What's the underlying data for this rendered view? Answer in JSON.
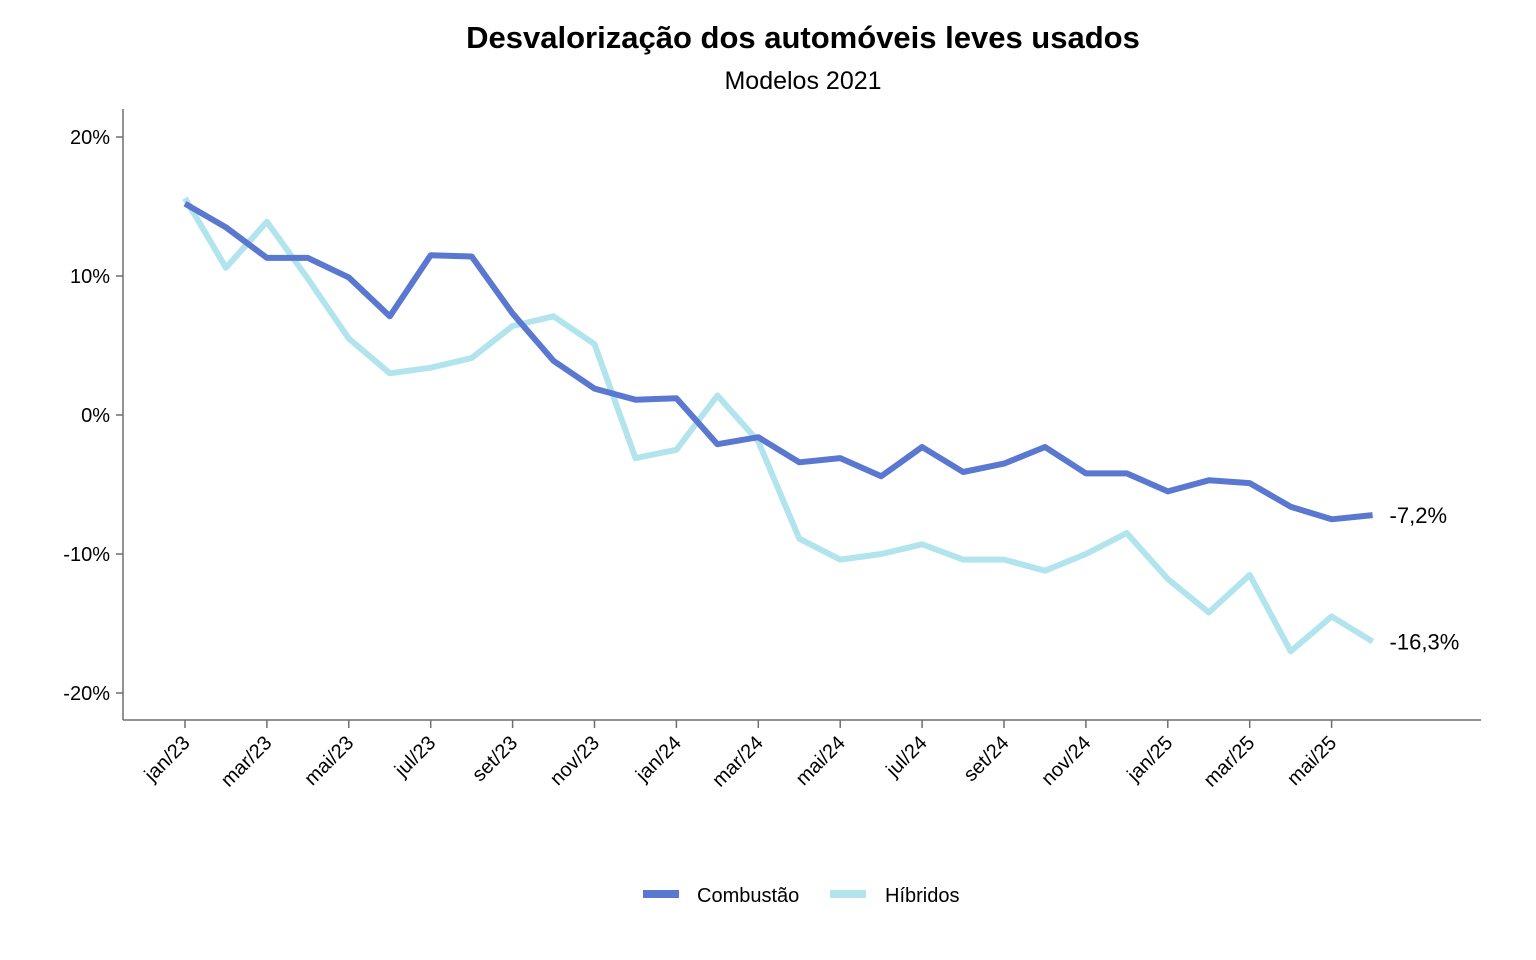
{
  "chart_data": {
    "type": "line",
    "title": "Desvalorização dos automóveis leves usados",
    "subtitle": "Modelos 2021",
    "xlabel": "",
    "ylabel": "",
    "ylim": [
      -22,
      22
    ],
    "y_ticks": [
      20,
      10,
      0,
      -10,
      -20
    ],
    "y_tick_labels": [
      "20%",
      "10%",
      "0%",
      "-10%",
      "-20%"
    ],
    "x": [
      "jan/23",
      "fev/23",
      "mar/23",
      "abr/23",
      "mai/23",
      "jun/23",
      "jul/23",
      "ago/23",
      "set/23",
      "out/23",
      "nov/23",
      "dez/23",
      "jan/24",
      "fev/24",
      "mar/24",
      "abr/24",
      "mai/24",
      "jun/24",
      "jul/24",
      "ago/24",
      "set/24",
      "out/24",
      "nov/24",
      "dez/24",
      "jan/25",
      "fev/25",
      "mar/25",
      "abr/25",
      "mai/25",
      "jun/25"
    ],
    "x_tick_labels": [
      "jan/23",
      "mar/23",
      "mai/23",
      "jul/23",
      "set/23",
      "nov/23",
      "jan/24",
      "mar/24",
      "mai/24",
      "jul/24",
      "set/24",
      "nov/24",
      "jan/25",
      "mar/25",
      "mai/25"
    ],
    "series": [
      {
        "name": "Combustão",
        "color": "#5b78d0",
        "values": [
          15.2,
          13.5,
          11.3,
          11.3,
          9.9,
          7.1,
          11.5,
          11.4,
          7.3,
          3.9,
          1.9,
          1.1,
          1.2,
          -2.1,
          -1.6,
          -3.4,
          -3.1,
          -4.4,
          -2.3,
          -4.1,
          -3.5,
          -2.3,
          -4.2,
          -4.2,
          -5.5,
          -4.7,
          -4.9,
          -6.6,
          -7.5,
          -7.2
        ],
        "end_label": "-7,2%"
      },
      {
        "name": "Híbridos",
        "color": "#b2e4ee",
        "values": [
          15.6,
          10.6,
          13.9,
          9.8,
          5.5,
          3.0,
          3.4,
          4.1,
          6.4,
          7.1,
          5.1,
          -3.1,
          -2.5,
          1.4,
          -1.9,
          -8.9,
          -10.4,
          -10.0,
          -9.3,
          -10.4,
          -10.4,
          -11.2,
          -10.0,
          -8.5,
          -11.8,
          -14.2,
          -11.5,
          -17.0,
          -14.5,
          -16.3
        ],
        "end_label": "-16,3%"
      }
    ],
    "legend_position": "bottom-center"
  }
}
